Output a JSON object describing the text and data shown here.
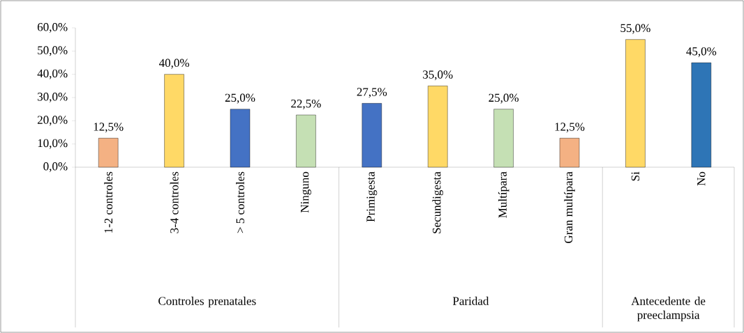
{
  "chart_data": {
    "type": "bar",
    "categories": [
      "1-2 controles",
      "3-4 controles",
      "> 5 controles",
      "Ninguno",
      "Primigesta",
      "Secundigesta",
      "Multípara",
      "Gran multípara",
      "Si",
      "No"
    ],
    "values": [
      12.5,
      40.0,
      25.0,
      22.5,
      27.5,
      35.0,
      25.0,
      12.5,
      55.0,
      45.0
    ],
    "colors": [
      "#f4b183",
      "#ffd966",
      "#4472c4",
      "#c5e0b4",
      "#4472c4",
      "#ffd966",
      "#c5e0b4",
      "#f4b183",
      "#ffd966",
      "#2e75b6"
    ],
    "value_labels": [
      "12,5%",
      "40,0%",
      "25,0%",
      "22,5%",
      "27,5%",
      "35,0%",
      "25,0%",
      "12,5%",
      "55,0%",
      "45,0%"
    ],
    "ylim": [
      0,
      60
    ],
    "yticks": [
      {
        "value": 0,
        "label": "0,0%"
      },
      {
        "value": 10,
        "label": "10,0%"
      },
      {
        "value": 20,
        "label": "20,0%"
      },
      {
        "value": 30,
        "label": "30,0%"
      },
      {
        "value": 40,
        "label": "40,0%"
      },
      {
        "value": 50,
        "label": "50,0%"
      },
      {
        "value": 60,
        "label": "60,0%"
      }
    ],
    "annotations": [
      "Controles prenatales",
      "Paridad",
      "Antecedente de preeclampsia"
    ]
  }
}
